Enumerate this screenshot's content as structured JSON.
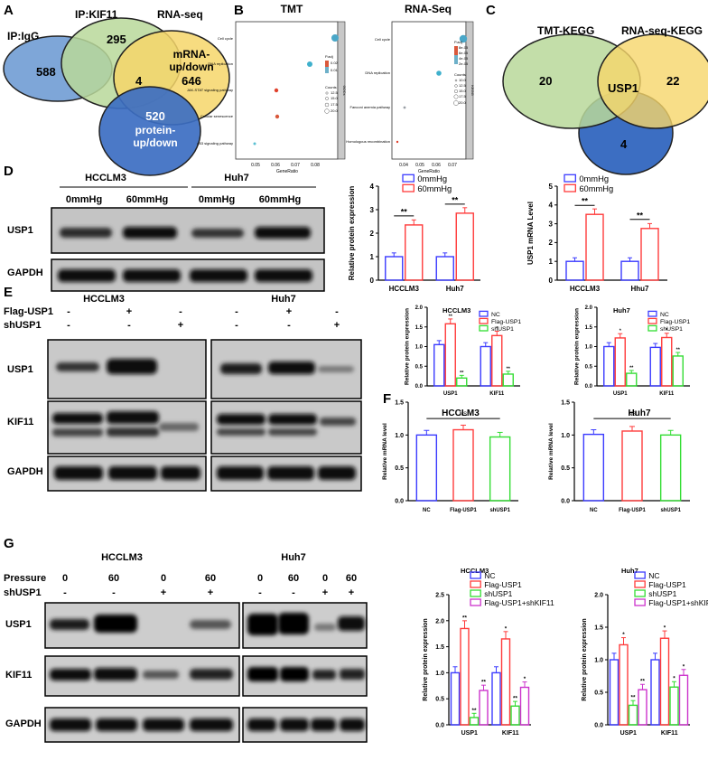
{
  "panels": {
    "A": "A",
    "B": "B",
    "C": "C",
    "D": "D",
    "E": "E",
    "F": "F",
    "G": "G"
  },
  "A": {
    "ip_igg": "IP:IgG",
    "ip_kif11": "IP:KIF11",
    "rna_seq": "RNA-seq",
    "n588": "588",
    "n295": "295",
    "n4": "4",
    "n646": "646",
    "n520": "520",
    "mrna_l1": "mRNA-",
    "mrna_l2": "up/down",
    "prot_l1": "protein-",
    "prot_l2": "up/down",
    "colors": {
      "igg": "#7ea6d8",
      "kif11": "#b9d89a",
      "rna": "#f6d66a",
      "protein": "#3c6ec2"
    }
  },
  "B": {
    "tmt": {
      "title": "TMT",
      "strip": "GOCs",
      "xlabel": "GeneRatio",
      "terms": [
        "Cell cycle",
        "DNA replication",
        "JAK-STAT signaling pathway",
        "Cellular senescence",
        "p53 signaling pathway"
      ],
      "ticks": [
        "0.05",
        "0.06",
        "0.07",
        "0.08"
      ],
      "legend_padj": "P.adj",
      "padj_ticks": [
        "0.02",
        "0.01"
      ],
      "legend_counts": "Counts",
      "count_ticks": [
        "12.5",
        "15.0",
        "17.5",
        "20.0"
      ]
    },
    "rna": {
      "title": "RNA-Seq",
      "strip": "KEGG",
      "xlabel": "GeneRatio",
      "terms": [
        "Cell cycle",
        "DNA replication",
        "Fanconi anemia pathway",
        "Homologous recombination"
      ],
      "ticks": [
        "0.04",
        "0.05",
        "0.06",
        "0.07"
      ],
      "legend_padj": "P.adj",
      "padj_ticks": [
        "8e-05",
        "6e-05",
        "4e-05",
        "2e-05"
      ],
      "legend_counts": "Counts",
      "count_ticks": [
        "10.0",
        "12.5",
        "15.0",
        "17.5",
        "20.0"
      ]
    }
  },
  "C": {
    "tmt": "TMT-KEGG",
    "rna": "RNA-seq-KEGG",
    "n20": "20",
    "usp1": "USP1",
    "n22": "22",
    "n4": "4",
    "colors": {
      "tmt": "#b9d89a",
      "rna": "#f6d66a",
      "blue": "#3c6ec2"
    }
  },
  "D": {
    "blot": {
      "g1": "HCCLM3",
      "g2": "Huh7",
      "c1": "0mmHg",
      "c2": "60mmHg",
      "c3": "0mmHg",
      "c4": "60mmHg",
      "row1": "USP1",
      "row2": "GAPDH"
    }
  },
  "E": {
    "blot": {
      "g1": "HCCLM3",
      "g2": "Huh7",
      "r1": "Flag-USP1",
      "r2": "shUSP1",
      "flag": [
        "-",
        "+",
        "-",
        "-",
        "+",
        "-"
      ],
      "sh": [
        "-",
        "-",
        "+",
        "-",
        "-",
        "+"
      ],
      "rowA": "USP1",
      "rowB": "KIF11",
      "rowC": "GAPDH"
    }
  },
  "G": {
    "blot": {
      "g1": "HCCLM3",
      "g2": "Huh7",
      "r1": "Pressure",
      "r2": "shUSP1",
      "pressure": [
        "0",
        "60",
        "0",
        "60",
        "0",
        "60",
        "0",
        "60"
      ],
      "sh": [
        "-",
        "-",
        "+",
        "+",
        "-",
        "-",
        "+",
        "+"
      ],
      "rowA": "USP1",
      "rowB": "KIF11",
      "rowC": "GAPDH"
    }
  },
  "chart_data": [
    {
      "id": "D1",
      "type": "bar",
      "categories": [
        "HCCLM3",
        "Huh7"
      ],
      "series": [
        {
          "name": "0mmHg",
          "values": [
            1.0,
            1.0
          ],
          "color": "#3b3bff"
        },
        {
          "name": "60mmHg",
          "values": [
            2.35,
            2.85
          ],
          "color": "#ff3b3b"
        }
      ],
      "ylabel": "Relative protein expression",
      "ylim": [
        0,
        4
      ],
      "yticks": [
        0,
        1,
        2,
        3,
        4
      ],
      "sig": [
        "**",
        "**"
      ],
      "legend": "top"
    },
    {
      "id": "D2",
      "type": "bar",
      "categories": [
        "HCCLM3",
        "Hhu7"
      ],
      "series": [
        {
          "name": "0mmHg",
          "values": [
            1.0,
            1.0
          ],
          "color": "#3b3bff"
        },
        {
          "name": "60mmHg",
          "values": [
            3.5,
            2.75
          ],
          "color": "#ff3b3b"
        }
      ],
      "ylabel": "USP1 mRNA Level",
      "ylim": [
        0,
        5
      ],
      "yticks": [
        0,
        1,
        2,
        3,
        4,
        5
      ],
      "sig": [
        "**",
        "**"
      ],
      "legend": "top"
    },
    {
      "id": "E1",
      "type": "bar",
      "title": "HCCLM3",
      "categories": [
        "USP1",
        "KIF11"
      ],
      "series": [
        {
          "name": "NC",
          "values": [
            1.05,
            1.0
          ],
          "color": "#3b3bff"
        },
        {
          "name": "Flag-USP1",
          "values": [
            1.58,
            1.28
          ],
          "color": "#ff3b3b"
        },
        {
          "name": "shUSP1",
          "values": [
            0.2,
            0.3
          ],
          "color": "#33dd33"
        }
      ],
      "ylabel": "Relative protein expression",
      "ylim": [
        0,
        2
      ],
      "yticks": [
        0.0,
        0.5,
        1.0,
        1.5,
        2.0
      ],
      "marks": [
        [
          "",
          "**",
          "**"
        ],
        [
          "",
          "*",
          "**"
        ]
      ],
      "legend": "top-right"
    },
    {
      "id": "E2",
      "type": "bar",
      "title": "Huh7",
      "categories": [
        "USP1",
        "KIF11"
      ],
      "series": [
        {
          "name": "NC",
          "values": [
            1.0,
            0.98
          ],
          "color": "#3b3bff"
        },
        {
          "name": "Flag-USP1",
          "values": [
            1.22,
            1.23
          ],
          "color": "#ff3b3b"
        },
        {
          "name": "shUSP1",
          "values": [
            0.32,
            0.76
          ],
          "color": "#33dd33"
        }
      ],
      "ylabel": "Relative protein expression",
      "ylim": [
        0,
        2
      ],
      "yticks": [
        0.0,
        0.5,
        1.0,
        1.5,
        2.0
      ],
      "marks": [
        [
          "",
          "*",
          "**"
        ],
        [
          "",
          "*",
          "**"
        ]
      ],
      "legend": "top-right"
    },
    {
      "id": "F1",
      "type": "bar",
      "title": "HCCLM3",
      "categories": [
        "NC",
        "Flag-USP1",
        "shUSP1"
      ],
      "values": [
        1.0,
        1.08,
        0.97
      ],
      "colors": [
        "#3b3bff",
        "#ff3b3b",
        "#33dd33"
      ],
      "ylabel": "Relative mRNA level",
      "ylim": [
        0,
        1.5
      ],
      "yticks": [
        0.0,
        0.5,
        1.0,
        1.5
      ],
      "annotation": "NS"
    },
    {
      "id": "F2",
      "type": "bar",
      "title": "Huh7",
      "categories": [
        "NC",
        "Flag-USP1",
        "shUSP1"
      ],
      "values": [
        1.01,
        1.06,
        1.0
      ],
      "colors": [
        "#3b3bff",
        "#ff3b3b",
        "#33dd33"
      ],
      "ylabel": "Relative mRNA level",
      "ylim": [
        0,
        1.5
      ],
      "yticks": [
        0.0,
        0.5,
        1.0,
        1.5
      ],
      "annotation": "NS"
    },
    {
      "id": "G1",
      "type": "bar",
      "title": "HCCLM3",
      "categories": [
        "USP1",
        "KIF11"
      ],
      "series": [
        {
          "name": "NC",
          "values": [
            1.0,
            1.0
          ],
          "color": "#3b3bff"
        },
        {
          "name": "Flag-USP1",
          "values": [
            1.85,
            1.65
          ],
          "color": "#ff3b3b"
        },
        {
          "name": "shUSP1",
          "values": [
            0.14,
            0.36
          ],
          "color": "#33dd33"
        },
        {
          "name": "Flag-USP1+shKIF11",
          "values": [
            0.66,
            0.72
          ],
          "color": "#cc33cc"
        }
      ],
      "ylabel": "Relative protein expression",
      "ylim": [
        0,
        2.5
      ],
      "yticks": [
        0.0,
        0.5,
        1.0,
        1.5,
        2.0,
        2.5
      ],
      "marks": [
        [
          "",
          "**",
          "**",
          "**"
        ],
        [
          "",
          "*",
          "**",
          "*"
        ]
      ],
      "legend": "top-right"
    },
    {
      "id": "G2",
      "type": "bar",
      "title": "Huh7",
      "categories": [
        "USP1",
        "KIF11"
      ],
      "series": [
        {
          "name": "NC",
          "values": [
            1.0,
            1.0
          ],
          "color": "#3b3bff"
        },
        {
          "name": "Flag-USP1",
          "values": [
            1.23,
            1.33
          ],
          "color": "#ff3b3b"
        },
        {
          "name": "shUSP1",
          "values": [
            0.3,
            0.58
          ],
          "color": "#33dd33"
        },
        {
          "name": "Flag-USP1+shKIF11",
          "values": [
            0.54,
            0.76
          ],
          "color": "#cc33cc"
        }
      ],
      "ylabel": "Relative protein expression",
      "ylim": [
        0,
        2.0
      ],
      "yticks": [
        0.0,
        0.5,
        1.0,
        1.5,
        2.0
      ],
      "marks": [
        [
          "",
          "*",
          "**",
          "**"
        ],
        [
          "",
          "*",
          "*",
          "*"
        ]
      ],
      "legend": "top-right"
    }
  ]
}
